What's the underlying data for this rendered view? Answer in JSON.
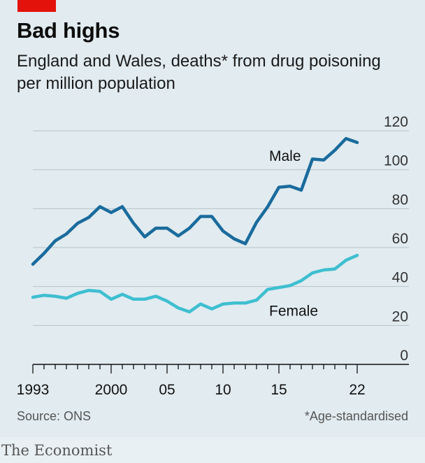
{
  "header": {
    "title": "Bad highs",
    "subtitle": "England and Wales, deaths* from drug poisoning per million population"
  },
  "footer": {
    "source": "Source: ONS",
    "footnote": "*Age-standardised",
    "brand": "The Economist"
  },
  "colors": {
    "accent_red": "#e3120b",
    "male": "#1a6b9c",
    "female": "#3ebfd0",
    "background": "#e1ebf0"
  },
  "chart_data": {
    "type": "line",
    "title": "Bad highs",
    "subtitle": "England and Wales, deaths* from drug poisoning per million population",
    "x": [
      1993,
      1994,
      1995,
      1996,
      1997,
      1998,
      1999,
      2000,
      2001,
      2002,
      2003,
      2004,
      2005,
      2006,
      2007,
      2008,
      2009,
      2010,
      2011,
      2012,
      2013,
      2014,
      2015,
      2016,
      2017,
      2018,
      2019,
      2020,
      2021,
      2022
    ],
    "x_ticks": [
      1993,
      2000,
      2005,
      2010,
      2015,
      2022
    ],
    "x_tick_labels": [
      "1993",
      "2000",
      "05",
      "10",
      "15",
      "22"
    ],
    "ylim": [
      0,
      120
    ],
    "y_ticks": [
      0,
      20,
      40,
      60,
      80,
      100,
      120
    ],
    "y_tick_labels": [
      "0",
      "20",
      "40",
      "60",
      "80",
      "100",
      "120"
    ],
    "y_axis_position": "right",
    "grid": true,
    "series": [
      {
        "name": "Male",
        "values": [
          51.5,
          57,
          63.5,
          67,
          72.5,
          75.5,
          81,
          78,
          81,
          72.5,
          65.5,
          70,
          70,
          66,
          70,
          76,
          76,
          68.5,
          64.5,
          62,
          73,
          81,
          91,
          91.5,
          89.5,
          105.5,
          105,
          110,
          116,
          114
        ]
      },
      {
        "name": "Female",
        "values": [
          34.5,
          35.5,
          35,
          34,
          36.5,
          38,
          37.5,
          33.5,
          36,
          33.5,
          33.5,
          35,
          32.5,
          29,
          27,
          31,
          28.5,
          31,
          31.5,
          31.5,
          33,
          38.5,
          39.5,
          40.5,
          43,
          47,
          48.5,
          49,
          53.5,
          56
        ]
      }
    ],
    "series_labels": {
      "Male": "Male",
      "Female": "Female"
    }
  }
}
